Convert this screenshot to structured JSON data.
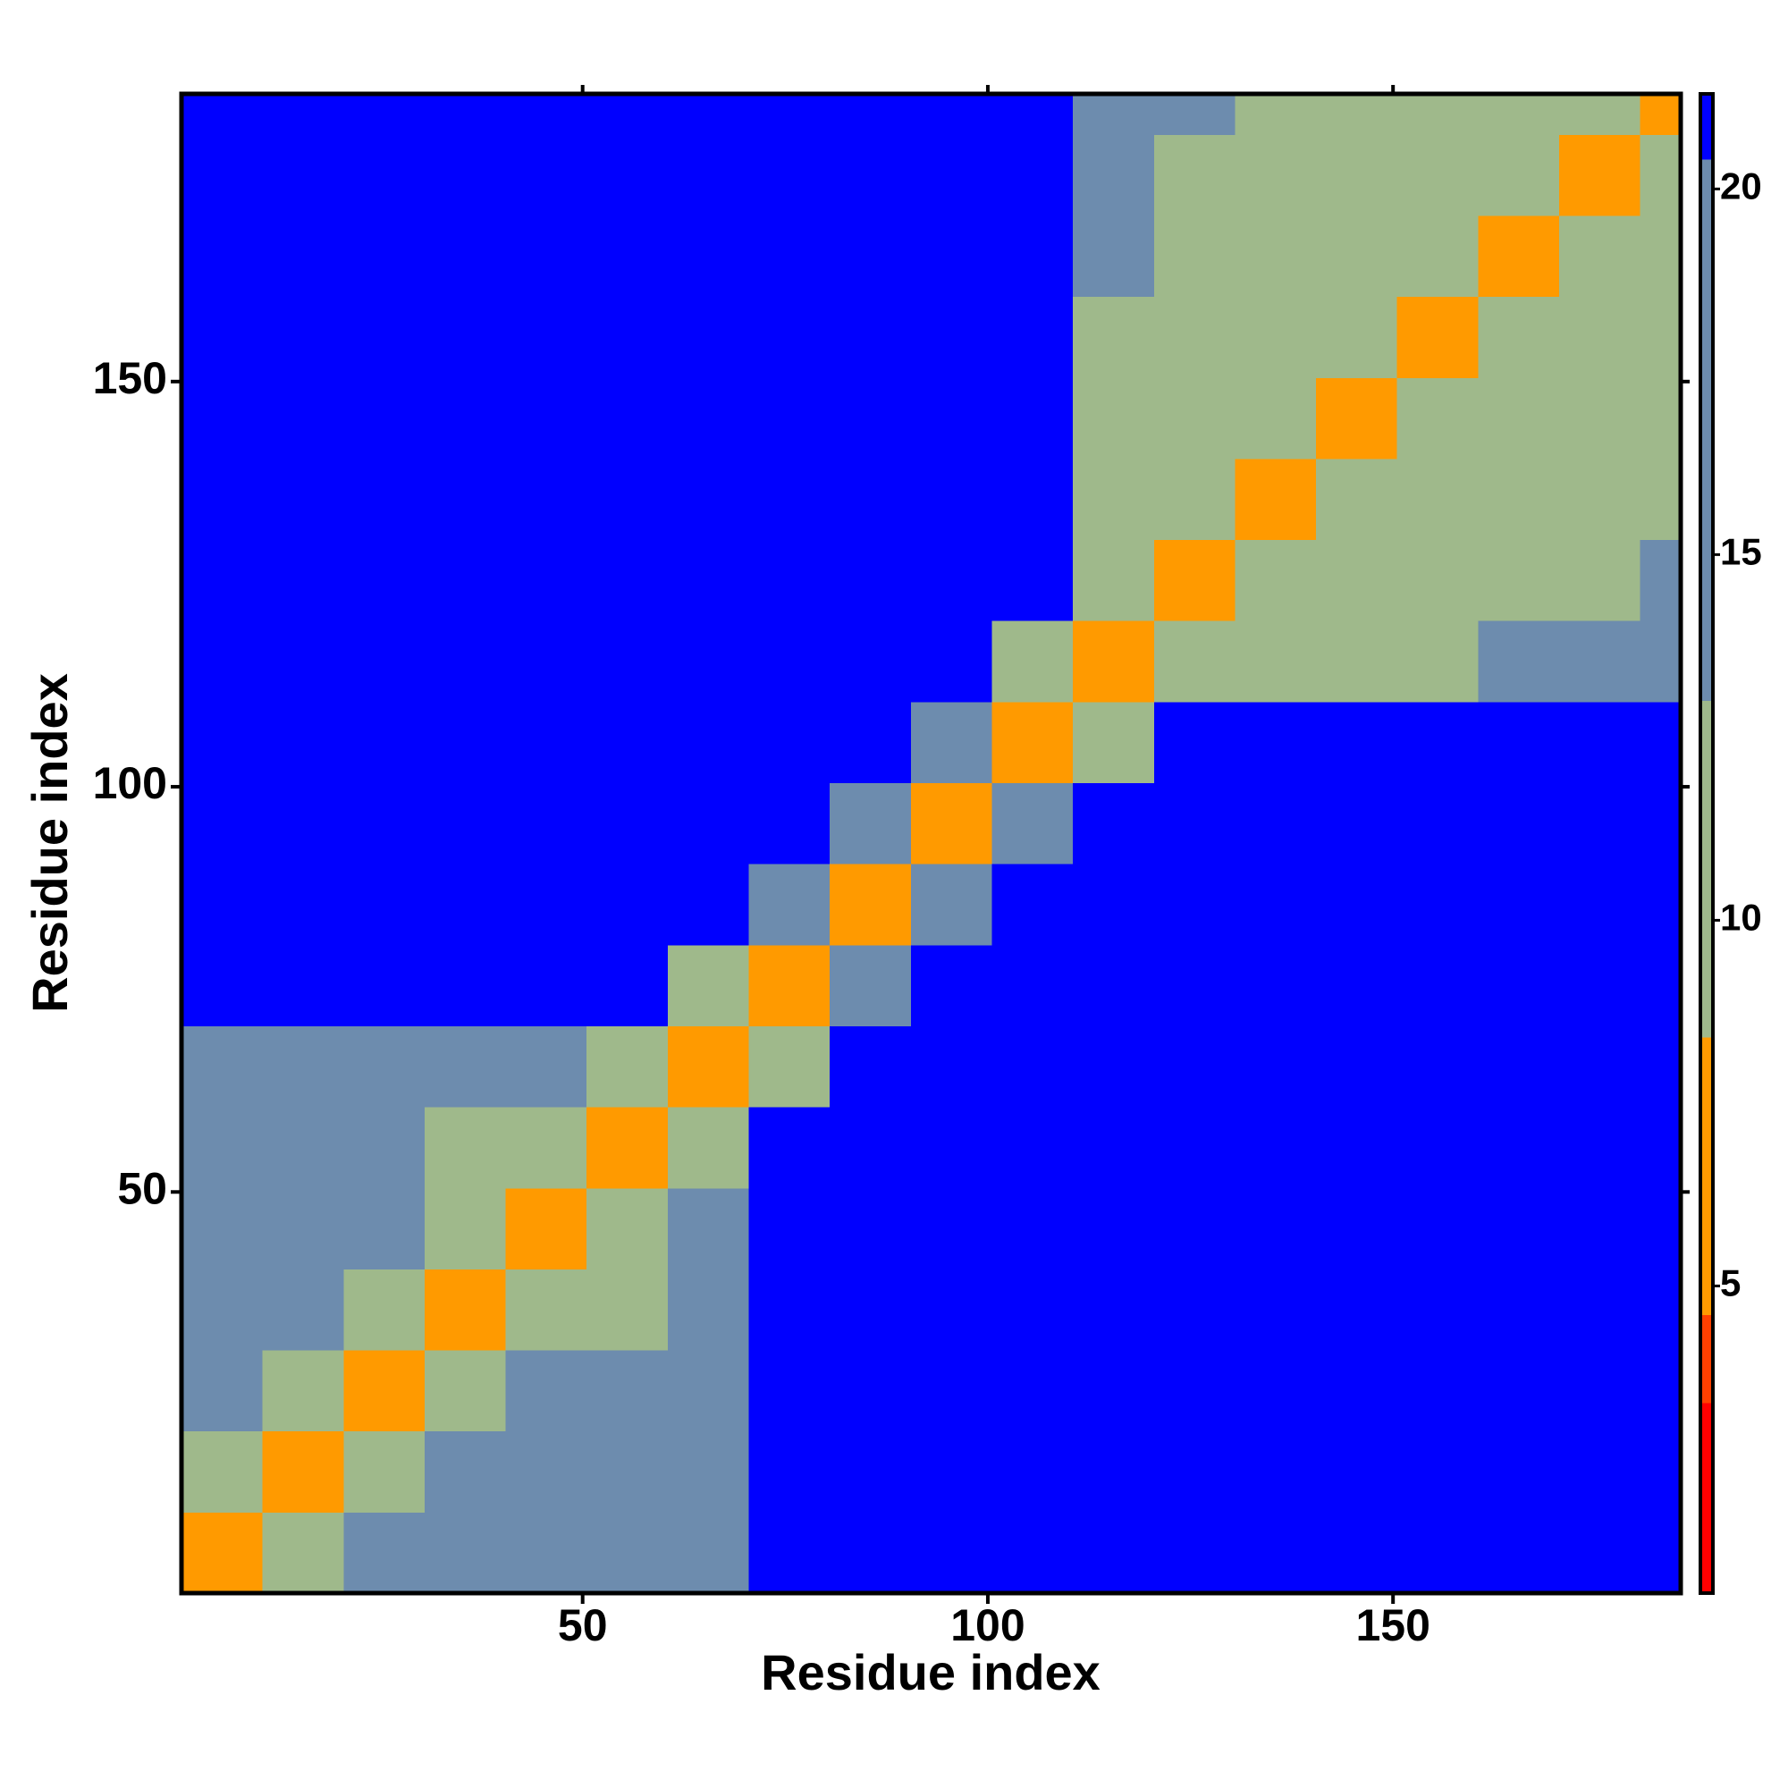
{
  "chart_data": {
    "type": "heatmap",
    "xlabel": "Residue index",
    "ylabel": "Residue index",
    "x_bins": [
      0.5,
      10.5,
      20.5,
      30.5,
      40.5,
      50.5,
      60.5,
      70.5,
      80.5,
      90.5,
      100.5,
      110.5,
      120.5,
      130.5,
      140.5,
      150.5,
      160.5,
      170.5,
      180.5,
      185.5
    ],
    "y_bins": [
      0.5,
      10.5,
      20.5,
      30.5,
      40.5,
      50.5,
      60.5,
      70.5,
      80.5,
      90.5,
      100.5,
      110.5,
      120.5,
      130.5,
      140.5,
      150.5,
      160.5,
      170.5,
      180.5,
      185.5
    ],
    "xlim": [
      0.5,
      185.5
    ],
    "ylim": [
      0.5,
      185.5
    ],
    "xticks": [
      50,
      100,
      150
    ],
    "yticks": [
      50,
      100,
      150
    ],
    "z": [
      [
        5,
        11,
        17,
        17,
        17,
        20,
        20,
        21,
        21,
        21,
        21,
        21,
        21,
        21,
        21,
        21,
        21,
        21,
        21
      ],
      [
        11,
        5,
        11,
        17,
        17,
        17,
        20,
        21,
        21,
        21,
        21,
        21,
        21,
        21,
        21,
        21,
        21,
        21,
        21
      ],
      [
        17,
        11,
        5,
        11,
        17,
        17,
        17,
        21,
        21,
        21,
        21,
        21,
        21,
        21,
        21,
        21,
        21,
        21,
        21
      ],
      [
        17,
        17,
        11,
        5,
        11,
        10,
        17,
        21,
        21,
        21,
        21,
        21,
        21,
        21,
        21,
        21,
        21,
        21,
        21
      ],
      [
        17,
        17,
        17,
        11,
        5,
        11,
        17,
        21,
        21,
        21,
        21,
        21,
        21,
        21,
        21,
        21,
        21,
        21,
        21
      ],
      [
        20,
        17,
        17,
        10,
        11,
        5,
        11,
        21,
        21,
        21,
        21,
        21,
        21,
        21,
        21,
        21,
        21,
        21,
        21
      ],
      [
        20,
        20,
        17,
        17,
        17,
        11,
        5,
        12,
        21,
        21,
        21,
        21,
        21,
        21,
        21,
        21,
        21,
        21,
        21
      ],
      [
        21,
        21,
        21,
        21,
        21,
        21,
        12,
        5,
        14,
        21,
        21,
        21,
        21,
        21,
        21,
        21,
        21,
        21,
        21
      ],
      [
        21,
        21,
        21,
        21,
        21,
        21,
        21,
        14,
        5,
        14,
        21,
        21,
        21,
        21,
        21,
        21,
        21,
        21,
        21
      ],
      [
        21,
        21,
        21,
        21,
        21,
        21,
        21,
        21,
        14,
        5,
        14,
        21,
        21,
        21,
        21,
        21,
        21,
        21,
        21
      ],
      [
        21,
        21,
        21,
        21,
        21,
        21,
        21,
        21,
        21,
        14,
        5,
        13,
        21,
        21,
        21,
        21,
        21,
        21,
        21
      ],
      [
        21,
        21,
        21,
        21,
        21,
        21,
        21,
        21,
        21,
        21,
        13,
        5,
        10,
        13,
        13,
        13,
        15,
        17,
        18
      ],
      [
        21,
        21,
        21,
        21,
        21,
        21,
        21,
        21,
        21,
        21,
        21,
        10,
        5,
        10,
        10,
        9,
        13,
        13,
        14
      ],
      [
        21,
        21,
        21,
        21,
        21,
        21,
        21,
        21,
        21,
        21,
        21,
        13,
        10,
        5,
        10,
        13,
        9,
        13,
        13
      ],
      [
        21,
        21,
        21,
        21,
        21,
        21,
        21,
        21,
        21,
        21,
        21,
        13,
        10,
        10,
        5,
        10,
        13,
        13,
        13
      ],
      [
        21,
        21,
        21,
        21,
        21,
        21,
        21,
        21,
        21,
        21,
        21,
        13,
        9,
        13,
        10,
        5,
        10,
        9,
        13
      ],
      [
        21,
        21,
        21,
        21,
        21,
        21,
        21,
        21,
        21,
        21,
        21,
        15,
        13,
        9,
        13,
        10,
        5,
        10,
        13
      ],
      [
        21,
        21,
        21,
        21,
        21,
        21,
        21,
        21,
        21,
        21,
        21,
        17,
        13,
        13,
        13,
        9,
        10,
        5,
        10
      ],
      [
        21,
        21,
        21,
        21,
        21,
        21,
        21,
        21,
        21,
        21,
        21,
        18,
        14,
        13,
        13,
        13,
        13,
        10,
        5
      ]
    ],
    "zlim": [
      0.8,
      21.3
    ],
    "zticks": [
      5,
      10,
      15,
      20
    ],
    "color_bands": [
      {
        "from": 0.8,
        "to": 3.4,
        "color": "#ff0000"
      },
      {
        "from": 3.4,
        "to": 4.6,
        "color": "#ff4000"
      },
      {
        "from": 4.6,
        "to": 8.4,
        "color": "#ff9a00"
      },
      {
        "from": 8.4,
        "to": 13,
        "color": "#9fb98b"
      },
      {
        "from": 13,
        "to": 20.4,
        "color": "#6d8cae"
      },
      {
        "from": 20.4,
        "to": 21.3,
        "color": "#0000ff"
      }
    ]
  }
}
